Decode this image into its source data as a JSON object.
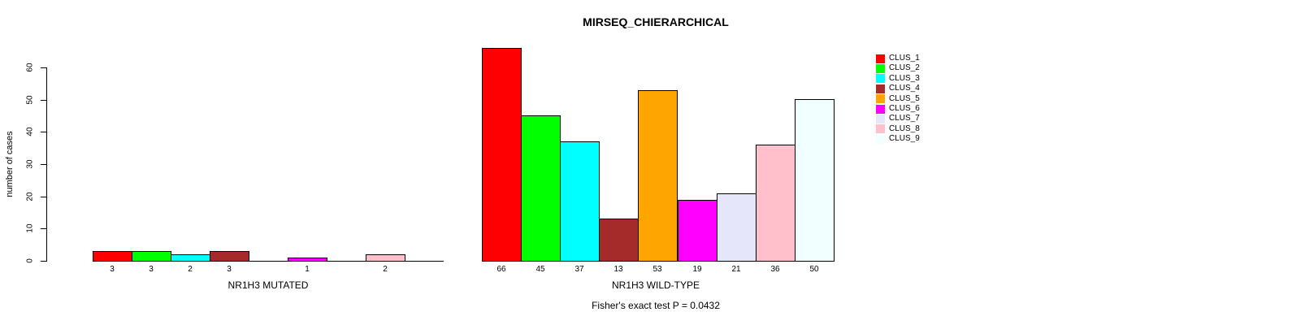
{
  "title": "MIRSEQ_CHIERARCHICAL",
  "footnote": "Fisher's exact test P = 0.0432",
  "y_axis": {
    "label": "number of cases"
  },
  "legend": {
    "items": [
      {
        "label": "CLUS_1",
        "color": "#FF0000"
      },
      {
        "label": "CLUS_2",
        "color": "#00FF00"
      },
      {
        "label": "CLUS_3",
        "color": "#00FFFF"
      },
      {
        "label": "CLUS_4",
        "color": "#A52A2A"
      },
      {
        "label": "CLUS_5",
        "color": "#FFA500"
      },
      {
        "label": "CLUS_6",
        "color": "#FF00FF"
      },
      {
        "label": "CLUS_7",
        "color": "#E6E6FA"
      },
      {
        "label": "CLUS_8",
        "color": "#FFC0CB"
      },
      {
        "label": "CLUS_9",
        "color": "#F0FFFF"
      }
    ]
  },
  "chart_data": {
    "type": "bar",
    "title": "MIRSEQ_CHIERARCHICAL",
    "ylabel": "number of cases",
    "ylim": [
      0,
      66
    ],
    "yticks": [
      0,
      10,
      20,
      30,
      40,
      50,
      60
    ],
    "grid": false,
    "legend_position": "right-top",
    "categories": [
      "CLUS_1",
      "CLUS_2",
      "CLUS_3",
      "CLUS_4",
      "CLUS_5",
      "CLUS_6",
      "CLUS_7",
      "CLUS_8",
      "CLUS_9"
    ],
    "colors": [
      "#FF0000",
      "#00FF00",
      "#00FFFF",
      "#A52A2A",
      "#FFA500",
      "#FF00FF",
      "#E6E6FA",
      "#FFC0CB",
      "#F0FFFF"
    ],
    "panels": [
      {
        "xlabel": "NR1H3 MUTATED",
        "values": [
          3,
          3,
          2,
          3,
          0,
          1,
          0,
          2,
          0
        ],
        "bar_labels": [
          "3",
          "3",
          "2",
          "3",
          "",
          "1",
          "",
          "2",
          ""
        ]
      },
      {
        "xlabel": "NR1H3 WILD-TYPE",
        "values": [
          66,
          45,
          37,
          13,
          53,
          19,
          21,
          36,
          50
        ],
        "bar_labels": [
          "66",
          "45",
          "37",
          "13",
          "53",
          "19",
          "21",
          "36",
          "50"
        ]
      }
    ],
    "annotation": "Fisher's exact test P = 0.0432"
  }
}
